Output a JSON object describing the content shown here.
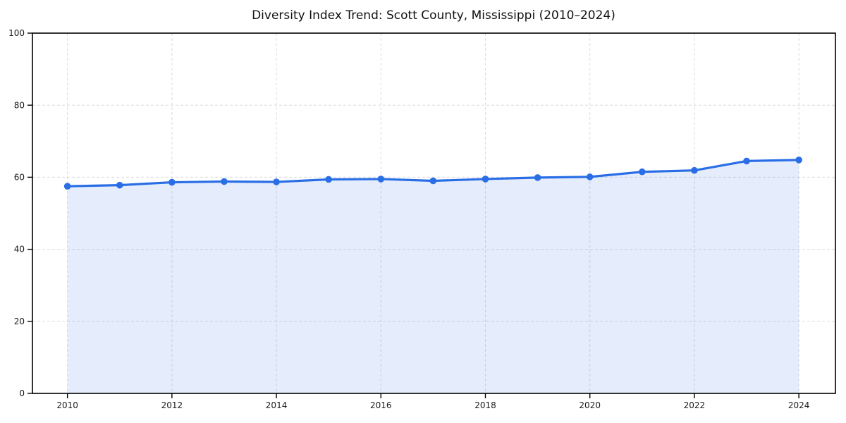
{
  "chart_data": {
    "type": "area",
    "title": "Diversity Index Trend: Scott County, Mississippi (2010–2024)",
    "x": [
      2010,
      2011,
      2012,
      2013,
      2014,
      2015,
      2016,
      2017,
      2018,
      2019,
      2020,
      2021,
      2022,
      2023,
      2024
    ],
    "series": [
      {
        "name": "Diversity Index",
        "values": [
          57.5,
          57.8,
          58.6,
          58.8,
          58.7,
          59.4,
          59.5,
          59.0,
          59.5,
          59.9,
          60.1,
          61.5,
          61.9,
          64.5,
          64.8
        ]
      }
    ],
    "xlabel": "",
    "ylabel": "",
    "xlim": [
      2009.33,
      2024.7
    ],
    "ylim": [
      0,
      100
    ],
    "x_tick_labels": [
      "2010",
      "2012",
      "2014",
      "2016",
      "2018",
      "2020",
      "2022",
      "2024"
    ],
    "x_tick_values": [
      2010,
      2012,
      2014,
      2016,
      2018,
      2020,
      2022,
      2024
    ],
    "y_tick_labels": [
      "0",
      "20",
      "40",
      "60",
      "80",
      "100"
    ],
    "y_tick_values": [
      0,
      20,
      40,
      60,
      80,
      100
    ],
    "grid": "dashed",
    "legend": "none",
    "colors": {
      "line": "#2a6ee6",
      "marker": "#2a6ee6",
      "fill": "#2a6ee6",
      "fill_opacity": 0.12,
      "grid": "#dcdcdc",
      "axis": "#000000",
      "tick_label": "#1a1a1a",
      "title": "#111111",
      "background": "#ffffff"
    }
  }
}
